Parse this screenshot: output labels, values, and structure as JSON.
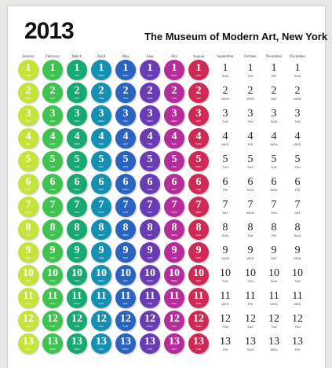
{
  "poster": {
    "year": "2013",
    "museum": "The Museum of Modern Art, New York"
  },
  "months": [
    {
      "label": "January",
      "color": "#c6e33a",
      "days": [
        {
          "n": "1",
          "d": "TUE"
        },
        {
          "n": "2",
          "d": "WED"
        },
        {
          "n": "3",
          "d": "THU"
        },
        {
          "n": "4",
          "d": "FRI"
        },
        {
          "n": "5",
          "d": "SAT"
        },
        {
          "n": "6",
          "d": "SUN"
        },
        {
          "n": "7",
          "d": "MON"
        },
        {
          "n": "8",
          "d": "TUE"
        },
        {
          "n": "9",
          "d": "WED"
        },
        {
          "n": "10",
          "d": "THU"
        },
        {
          "n": "11",
          "d": "FRI"
        },
        {
          "n": "12",
          "d": "SAT"
        },
        {
          "n": "13",
          "d": "SUN"
        }
      ]
    },
    {
      "label": "February",
      "color": "#3fc24f",
      "days": [
        {
          "n": "1",
          "d": "FRI"
        },
        {
          "n": "2",
          "d": "SAT"
        },
        {
          "n": "3",
          "d": "SUN"
        },
        {
          "n": "4",
          "d": "MON"
        },
        {
          "n": "5",
          "d": "TUE"
        },
        {
          "n": "6",
          "d": "WED"
        },
        {
          "n": "7",
          "d": "THU"
        },
        {
          "n": "8",
          "d": "FRI"
        },
        {
          "n": "9",
          "d": "SAT"
        },
        {
          "n": "10",
          "d": "SUN"
        },
        {
          "n": "11",
          "d": "MON"
        },
        {
          "n": "12",
          "d": "TUE"
        },
        {
          "n": "13",
          "d": "WED"
        }
      ]
    },
    {
      "label": "March",
      "color": "#17a874",
      "days": [
        {
          "n": "1",
          "d": "FRI"
        },
        {
          "n": "2",
          "d": "SAT"
        },
        {
          "n": "3",
          "d": "SUN"
        },
        {
          "n": "4",
          "d": "MON"
        },
        {
          "n": "5",
          "d": "TUE"
        },
        {
          "n": "6",
          "d": "WED"
        },
        {
          "n": "7",
          "d": "THU"
        },
        {
          "n": "8",
          "d": "FRI"
        },
        {
          "n": "9",
          "d": "SAT"
        },
        {
          "n": "10",
          "d": "SUN"
        },
        {
          "n": "11",
          "d": "MON"
        },
        {
          "n": "12",
          "d": "TUE"
        },
        {
          "n": "13",
          "d": "WED"
        }
      ]
    },
    {
      "label": "April",
      "color": "#1690b2",
      "days": [
        {
          "n": "1",
          "d": "MON"
        },
        {
          "n": "2",
          "d": "TUE"
        },
        {
          "n": "3",
          "d": "WED"
        },
        {
          "n": "4",
          "d": "THU"
        },
        {
          "n": "5",
          "d": "FRI"
        },
        {
          "n": "6",
          "d": "SAT"
        },
        {
          "n": "7",
          "d": "SUN"
        },
        {
          "n": "8",
          "d": "MON"
        },
        {
          "n": "9",
          "d": "TUE"
        },
        {
          "n": "10",
          "d": "WED"
        },
        {
          "n": "11",
          "d": "THU"
        },
        {
          "n": "12",
          "d": "FRI"
        },
        {
          "n": "13",
          "d": "SAT"
        }
      ]
    },
    {
      "label": "May",
      "color": "#2a64bf",
      "days": [
        {
          "n": "1",
          "d": "WED"
        },
        {
          "n": "2",
          "d": "THU"
        },
        {
          "n": "3",
          "d": "FRI"
        },
        {
          "n": "4",
          "d": "SAT"
        },
        {
          "n": "5",
          "d": "SUN"
        },
        {
          "n": "6",
          "d": "MON"
        },
        {
          "n": "7",
          "d": "TUE"
        },
        {
          "n": "8",
          "d": "WED"
        },
        {
          "n": "9",
          "d": "THU"
        },
        {
          "n": "10",
          "d": "FRI"
        },
        {
          "n": "11",
          "d": "SAT"
        },
        {
          "n": "12",
          "d": "SUN"
        },
        {
          "n": "13",
          "d": "MON"
        }
      ]
    },
    {
      "label": "June",
      "color": "#6a3cb4",
      "days": [
        {
          "n": "1",
          "d": "SAT"
        },
        {
          "n": "2",
          "d": "SUN"
        },
        {
          "n": "3",
          "d": "MON"
        },
        {
          "n": "4",
          "d": "TUE"
        },
        {
          "n": "5",
          "d": "WED"
        },
        {
          "n": "6",
          "d": "THU"
        },
        {
          "n": "7",
          "d": "FRI"
        },
        {
          "n": "8",
          "d": "SAT"
        },
        {
          "n": "9",
          "d": "SUN"
        },
        {
          "n": "10",
          "d": "MON"
        },
        {
          "n": "11",
          "d": "TUE"
        },
        {
          "n": "12",
          "d": "WED"
        },
        {
          "n": "13",
          "d": "THU"
        }
      ]
    },
    {
      "label": "July",
      "color": "#b42d9a",
      "days": [
        {
          "n": "1",
          "d": "MON"
        },
        {
          "n": "2",
          "d": "TUE"
        },
        {
          "n": "3",
          "d": "WED"
        },
        {
          "n": "4",
          "d": "THU"
        },
        {
          "n": "5",
          "d": "FRI"
        },
        {
          "n": "6",
          "d": "SAT"
        },
        {
          "n": "7",
          "d": "SUN"
        },
        {
          "n": "8",
          "d": "MON"
        },
        {
          "n": "9",
          "d": "TUE"
        },
        {
          "n": "10",
          "d": "WED"
        },
        {
          "n": "11",
          "d": "THU"
        },
        {
          "n": "12",
          "d": "FRI"
        },
        {
          "n": "13",
          "d": "SAT"
        }
      ]
    },
    {
      "label": "August",
      "color": "#cf2a56",
      "days": [
        {
          "n": "1",
          "d": "THU"
        },
        {
          "n": "2",
          "d": "FRI"
        },
        {
          "n": "3",
          "d": "SAT"
        },
        {
          "n": "4",
          "d": "SUN"
        },
        {
          "n": "5",
          "d": "MON"
        },
        {
          "n": "6",
          "d": "TUE"
        },
        {
          "n": "7",
          "d": "WED"
        },
        {
          "n": "8",
          "d": "THU"
        },
        {
          "n": "9",
          "d": "FRI"
        },
        {
          "n": "10",
          "d": "SAT"
        },
        {
          "n": "11",
          "d": "SUN"
        },
        {
          "n": "12",
          "d": "MON"
        },
        {
          "n": "13",
          "d": "TUE"
        }
      ]
    },
    {
      "label": "September",
      "color": "",
      "days": [
        {
          "n": "1",
          "d": "SUN"
        },
        {
          "n": "2",
          "d": "MON"
        },
        {
          "n": "3",
          "d": "TUE"
        },
        {
          "n": "4",
          "d": "WED"
        },
        {
          "n": "5",
          "d": "THU"
        },
        {
          "n": "6",
          "d": "FRI"
        },
        {
          "n": "7",
          "d": "SAT"
        },
        {
          "n": "8",
          "d": "SUN"
        },
        {
          "n": "9",
          "d": "MON"
        },
        {
          "n": "10",
          "d": "TUE"
        },
        {
          "n": "11",
          "d": "WED"
        },
        {
          "n": "12",
          "d": "THU"
        },
        {
          "n": "13",
          "d": "FRI"
        }
      ]
    },
    {
      "label": "October",
      "color": "",
      "days": [
        {
          "n": "1",
          "d": "TUE"
        },
        {
          "n": "2",
          "d": "WED"
        },
        {
          "n": "3",
          "d": "THU"
        },
        {
          "n": "4",
          "d": "FRI"
        },
        {
          "n": "5",
          "d": "SAT"
        },
        {
          "n": "6",
          "d": "SUN"
        },
        {
          "n": "7",
          "d": "MON"
        },
        {
          "n": "8",
          "d": "TUE"
        },
        {
          "n": "9",
          "d": "WED"
        },
        {
          "n": "10",
          "d": "THU"
        },
        {
          "n": "11",
          "d": "FRI"
        },
        {
          "n": "12",
          "d": "SAT"
        },
        {
          "n": "13",
          "d": "SUN"
        }
      ]
    },
    {
      "label": "November",
      "color": "",
      "days": [
        {
          "n": "1",
          "d": "FRI"
        },
        {
          "n": "2",
          "d": "SAT"
        },
        {
          "n": "3",
          "d": "SUN"
        },
        {
          "n": "4",
          "d": "MON"
        },
        {
          "n": "5",
          "d": "TUE"
        },
        {
          "n": "6",
          "d": "WED"
        },
        {
          "n": "7",
          "d": "THU"
        },
        {
          "n": "8",
          "d": "FRI"
        },
        {
          "n": "9",
          "d": "SAT"
        },
        {
          "n": "10",
          "d": "SUN"
        },
        {
          "n": "11",
          "d": "MON"
        },
        {
          "n": "12",
          "d": "TUE"
        },
        {
          "n": "13",
          "d": "WED"
        }
      ]
    },
    {
      "label": "December",
      "color": "",
      "days": [
        {
          "n": "1",
          "d": "SUN"
        },
        {
          "n": "2",
          "d": "MON"
        },
        {
          "n": "3",
          "d": "TUE"
        },
        {
          "n": "4",
          "d": "WED"
        },
        {
          "n": "5",
          "d": "THU"
        },
        {
          "n": "6",
          "d": "FRI"
        },
        {
          "n": "7",
          "d": "SAT"
        },
        {
          "n": "8",
          "d": "SUN"
        },
        {
          "n": "9",
          "d": "MON"
        },
        {
          "n": "10",
          "d": "TUE"
        },
        {
          "n": "11",
          "d": "WED"
        },
        {
          "n": "12",
          "d": "THU"
        },
        {
          "n": "13",
          "d": "FRI"
        }
      ]
    }
  ]
}
